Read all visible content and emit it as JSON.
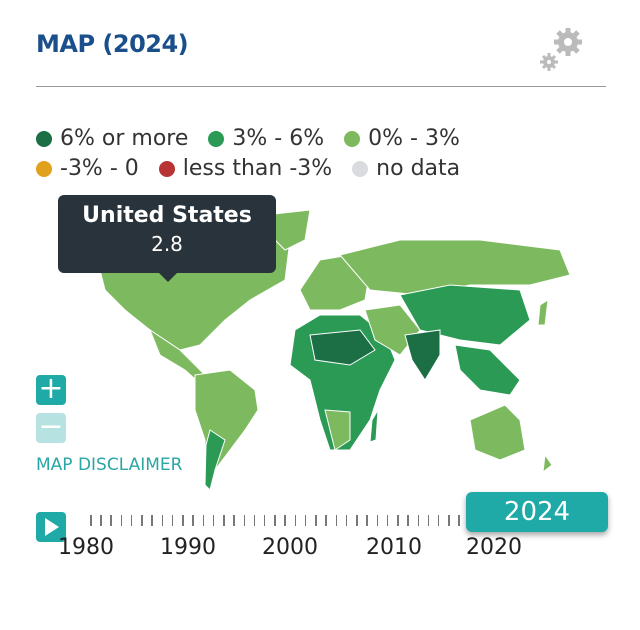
{
  "header": {
    "title": "MAP (2024)",
    "settings_icon": "gears-icon"
  },
  "legend": [
    {
      "label": "6% or more",
      "color": "#1c6e45"
    },
    {
      "label": "3% - 6%",
      "color": "#2a9a55"
    },
    {
      "label": "0% - 3%",
      "color": "#7dba5f"
    },
    {
      "label": "-3% - 0",
      "color": "#e0a21c"
    },
    {
      "label": "less than -3%",
      "color": "#b83434"
    },
    {
      "label": "no data",
      "color": "#d9dbdf"
    }
  ],
  "tooltip": {
    "country": "United States",
    "value": "2.8"
  },
  "controls": {
    "zoom_in": "+",
    "zoom_out": "−",
    "disclaimer": "MAP DISCLAIMER"
  },
  "timeline": {
    "years": [
      "1980",
      "1990",
      "2000",
      "2010",
      "2020"
    ],
    "current": "2024",
    "accent": "#1fa9a7"
  }
}
